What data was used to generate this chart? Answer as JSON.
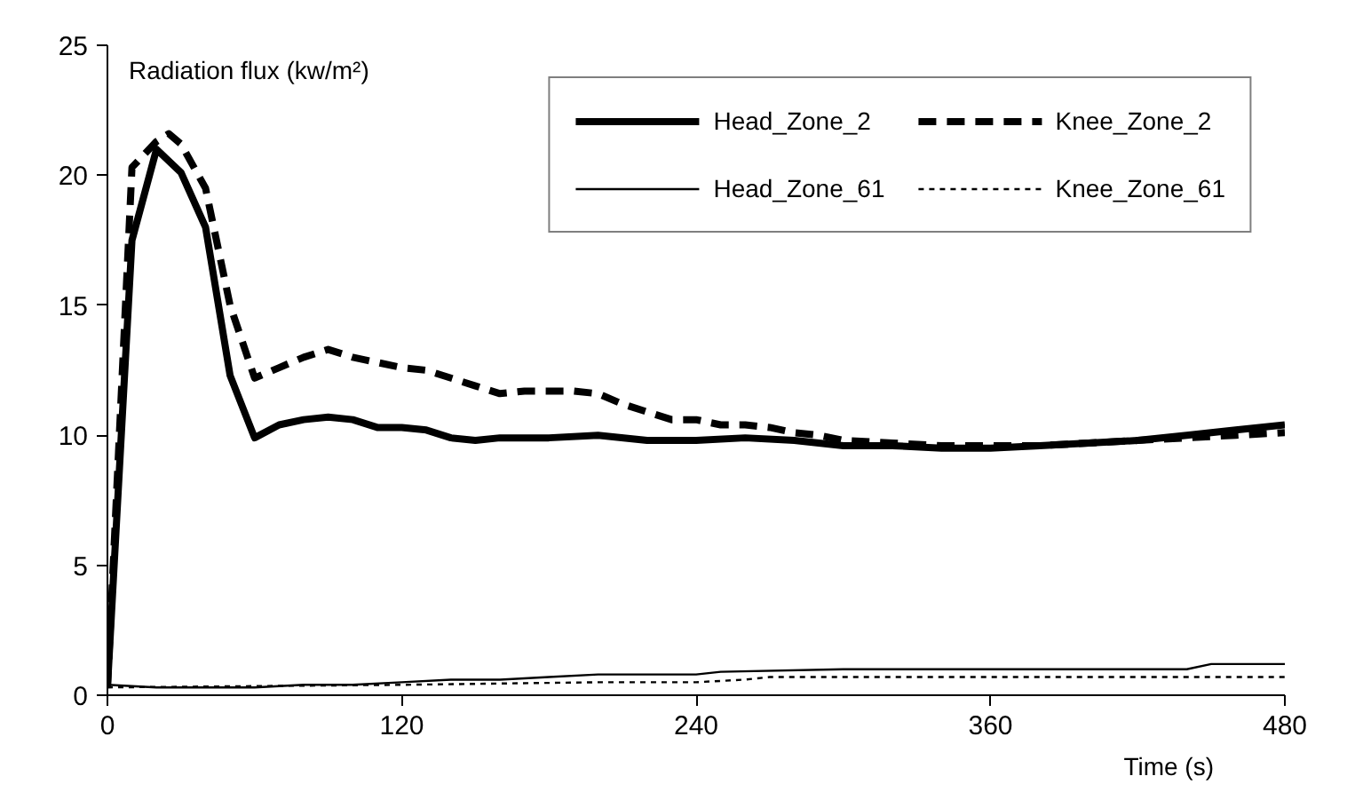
{
  "chart_data": {
    "type": "line",
    "ylabel": "Radiation flux (kw/m²)",
    "xlabel": "Time (s)",
    "xlim": [
      0,
      480
    ],
    "ylim": [
      0,
      25
    ],
    "xticks": [
      0,
      120,
      240,
      360,
      480
    ],
    "yticks": [
      0,
      5,
      10,
      15,
      20,
      25
    ],
    "grid": false,
    "legend": "top right",
    "series": [
      {
        "name": "Head_Zone_2",
        "color": "#000000",
        "line_style": "solid",
        "x": [
          0,
          10,
          20,
          30,
          40,
          50,
          60,
          70,
          80,
          90,
          100,
          110,
          120,
          130,
          140,
          150,
          160,
          180,
          200,
          220,
          240,
          260,
          280,
          300,
          320,
          340,
          360,
          380,
          400,
          420,
          440,
          460,
          480
        ],
        "values": [
          0.3,
          17.5,
          21,
          20.1,
          18,
          12.3,
          9.9,
          10.4,
          10.6,
          10.7,
          10.6,
          10.3,
          10.3,
          10.2,
          9.9,
          9.8,
          9.9,
          9.9,
          10,
          9.8,
          9.8,
          9.9,
          9.8,
          9.6,
          9.6,
          9.5,
          9.5,
          9.6,
          9.7,
          9.8,
          10,
          10.2,
          10.4
        ]
      },
      {
        "name": "Knee_Zone_2",
        "color": "#000000",
        "line_style": "dashed",
        "x": [
          0,
          10,
          20,
          25,
          30,
          40,
          50,
          60,
          70,
          80,
          90,
          100,
          110,
          120,
          130,
          140,
          150,
          160,
          170,
          180,
          190,
          200,
          210,
          220,
          230,
          240,
          250,
          260,
          270,
          280,
          290,
          300,
          320,
          340,
          360,
          380,
          400,
          420,
          440,
          460,
          480
        ],
        "values": [
          0.3,
          20.3,
          21.3,
          21.6,
          21.2,
          19.5,
          15,
          12.2,
          12.6,
          13,
          13.3,
          13,
          12.8,
          12.6,
          12.5,
          12.2,
          11.9,
          11.6,
          11.7,
          11.7,
          11.7,
          11.6,
          11.2,
          10.9,
          10.6,
          10.6,
          10.4,
          10.4,
          10.3,
          10.1,
          10,
          9.8,
          9.7,
          9.6,
          9.6,
          9.6,
          9.7,
          9.8,
          9.9,
          10,
          10.1
        ]
      },
      {
        "name": "Head_Zone_61",
        "color": "#000000",
        "line_style": "solid",
        "x": [
          0,
          20,
          60,
          80,
          100,
          120,
          140,
          160,
          180,
          200,
          240,
          250,
          300,
          440,
          450,
          480
        ],
        "values": [
          0.4,
          0.3,
          0.3,
          0.4,
          0.4,
          0.5,
          0.6,
          0.6,
          0.7,
          0.8,
          0.8,
          0.9,
          1,
          1,
          1.2,
          1.2
        ]
      },
      {
        "name": "Knee_Zone_61",
        "color": "#000000",
        "line_style": "dotted",
        "x": [
          0,
          120,
          200,
          240,
          260,
          270,
          480
        ],
        "values": [
          0.3,
          0.4,
          0.5,
          0.5,
          0.6,
          0.7,
          0.7
        ]
      }
    ]
  }
}
